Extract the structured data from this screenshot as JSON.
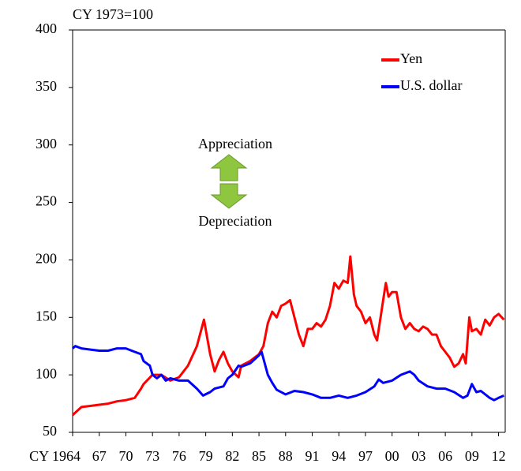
{
  "chart_data": {
    "type": "line",
    "ylabel": "CY 1973=100",
    "annotations": [
      "Appreciation",
      "Depreciation"
    ],
    "xlim": [
      1964,
      2012.75
    ],
    "ylim": [
      50,
      400
    ],
    "yticks": [
      50,
      100,
      150,
      200,
      250,
      300,
      350,
      400
    ],
    "xticks": [
      {
        "value": 1964,
        "label": "CY 1964"
      },
      {
        "value": 1967,
        "label": "67"
      },
      {
        "value": 1970,
        "label": "70"
      },
      {
        "value": 1973,
        "label": "73"
      },
      {
        "value": 1976,
        "label": "76"
      },
      {
        "value": 1979,
        "label": "79"
      },
      {
        "value": 1982,
        "label": "82"
      },
      {
        "value": 1985,
        "label": "85"
      },
      {
        "value": 1988,
        "label": "88"
      },
      {
        "value": 1991,
        "label": "91"
      },
      {
        "value": 1994,
        "label": "94"
      },
      {
        "value": 1997,
        "label": "97"
      },
      {
        "value": 2000,
        "label": "00"
      },
      {
        "value": 2003,
        "label": "03"
      },
      {
        "value": 2006,
        "label": "06"
      },
      {
        "value": 2009,
        "label": "09"
      },
      {
        "value": 2012,
        "label": "12"
      }
    ],
    "legend": "upper right",
    "grid": false,
    "series": [
      {
        "name": "Yen",
        "color": "#ff0000",
        "x": [
          1964,
          1965,
          1966,
          1967,
          1968,
          1969,
          1970,
          1971,
          1971.7,
          1972,
          1973,
          1974,
          1975,
          1976,
          1977,
          1978,
          1978.8,
          1979.5,
          1980,
          1980.5,
          1981,
          1981.5,
          1982,
          1982.7,
          1983,
          1984,
          1985,
          1985.5,
          1986,
          1986.5,
          1987,
          1987.5,
          1988,
          1988.5,
          1989,
          1989.5,
          1990,
          1990.5,
          1991,
          1991.5,
          1992,
          1992.5,
          1993,
          1993.5,
          1994,
          1994.5,
          1995,
          1995.3,
          1995.7,
          1996,
          1996.5,
          1997,
          1997.5,
          1998,
          1998.3,
          1998.7,
          1999,
          1999.3,
          1999.6,
          2000,
          2000.5,
          2001,
          2001.5,
          2002,
          2002.5,
          2003,
          2003.5,
          2004,
          2004.5,
          2005,
          2005.5,
          2006,
          2006.5,
          2007,
          2007.5,
          2008,
          2008.3,
          2008.7,
          2009,
          2009.5,
          2010,
          2010.5,
          2011,
          2011.5,
          2012,
          2012.6
        ],
        "values": [
          65,
          72,
          73,
          74,
          75,
          77,
          78,
          80,
          88,
          92,
          100,
          100,
          95,
          98,
          108,
          125,
          148,
          118,
          103,
          113,
          120,
          110,
          103,
          98,
          108,
          112,
          118,
          125,
          145,
          155,
          150,
          160,
          162,
          165,
          150,
          135,
          125,
          140,
          140,
          145,
          142,
          148,
          160,
          180,
          175,
          182,
          180,
          203,
          170,
          160,
          155,
          145,
          150,
          135,
          130,
          150,
          165,
          180,
          168,
          172,
          172,
          150,
          140,
          145,
          140,
          138,
          142,
          140,
          135,
          135,
          125,
          120,
          115,
          107,
          110,
          118,
          110,
          150,
          138,
          140,
          135,
          148,
          143,
          150,
          153,
          148
        ]
      },
      {
        "name": "U.S. dollar",
        "color": "#0000ff",
        "x": [
          1964,
          1964.3,
          1965,
          1966,
          1967,
          1968,
          1969,
          1970,
          1971,
          1971.7,
          1972,
          1972.7,
          1973,
          1973.5,
          1974,
          1974.5,
          1975,
          1976,
          1977,
          1978,
          1978.7,
          1979.5,
          1980,
          1981,
          1981.5,
          1982,
          1982.7,
          1983,
          1984,
          1985,
          1985.3,
          1986,
          1986.5,
          1987,
          1988,
          1989,
          1990,
          1991,
          1992,
          1993,
          1994,
          1995,
          1996,
          1997,
          1998,
          1998.5,
          1999,
          2000,
          2001,
          2002,
          2002.5,
          2003,
          2004,
          2005,
          2006,
          2007,
          2008,
          2008.5,
          2009,
          2009.5,
          2010,
          2011,
          2011.5,
          2012,
          2012.6
        ],
        "values": [
          123,
          125,
          123,
          122,
          121,
          121,
          123,
          123,
          120,
          118,
          112,
          108,
          100,
          97,
          100,
          95,
          97,
          95,
          95,
          88,
          82,
          85,
          88,
          90,
          97,
          100,
          108,
          107,
          110,
          117,
          120,
          100,
          93,
          87,
          83,
          86,
          85,
          83,
          80,
          80,
          82,
          80,
          82,
          85,
          90,
          96,
          93,
          95,
          100,
          103,
          100,
          95,
          90,
          88,
          88,
          85,
          80,
          82,
          92,
          85,
          86,
          80,
          78,
          80,
          82
        ]
      }
    ]
  }
}
